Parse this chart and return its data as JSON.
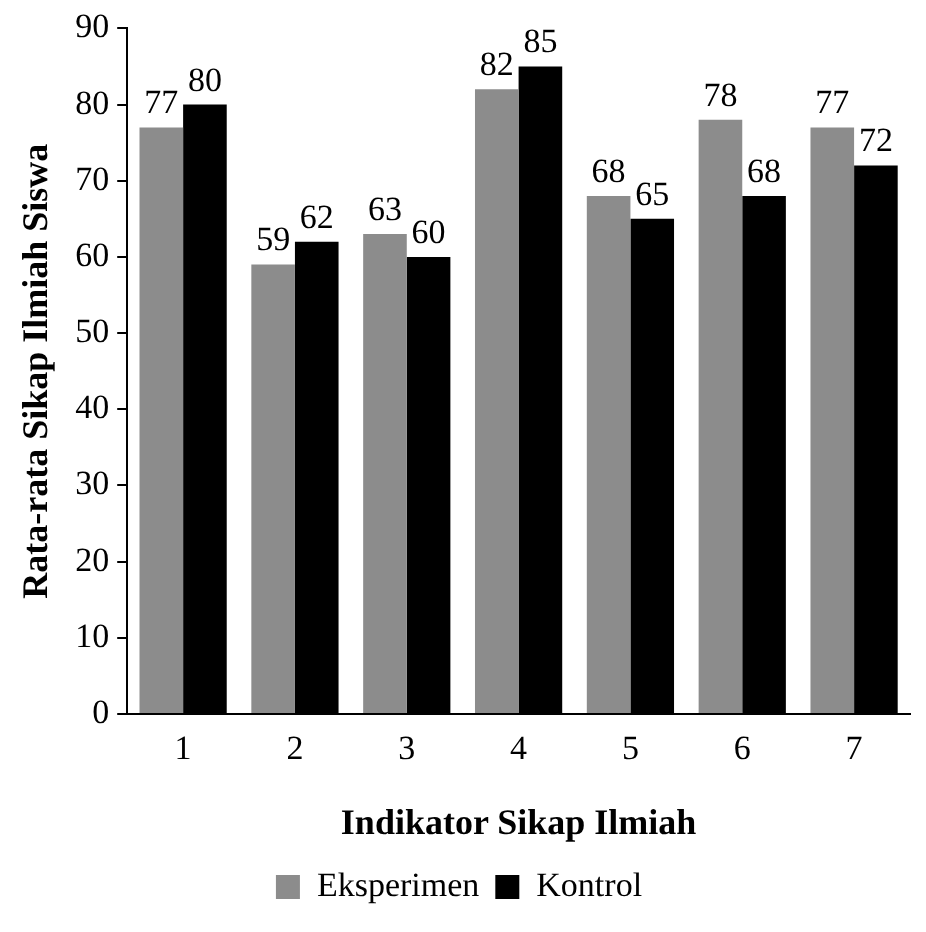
{
  "chart_data": {
    "type": "bar",
    "xlabel": "Indikator Sikap Ilmiah",
    "ylabel": "Rata-rata Sikap Ilmiah Siswa",
    "categories": [
      "1",
      "2",
      "3",
      "4",
      "5",
      "6",
      "7"
    ],
    "series": [
      {
        "name": "Eksperimen",
        "color": "#8c8c8c",
        "values": [
          77,
          59,
          63,
          82,
          68,
          78,
          77
        ]
      },
      {
        "name": "Kontrol",
        "color": "#000000",
        "values": [
          80,
          62,
          60,
          85,
          65,
          68,
          72
        ]
      }
    ],
    "ylim": [
      0,
      90
    ],
    "yticks": [
      0,
      10,
      20,
      30,
      40,
      50,
      60,
      70,
      80,
      90
    ],
    "grid": false,
    "legend": "bottom",
    "data_labels": true
  }
}
